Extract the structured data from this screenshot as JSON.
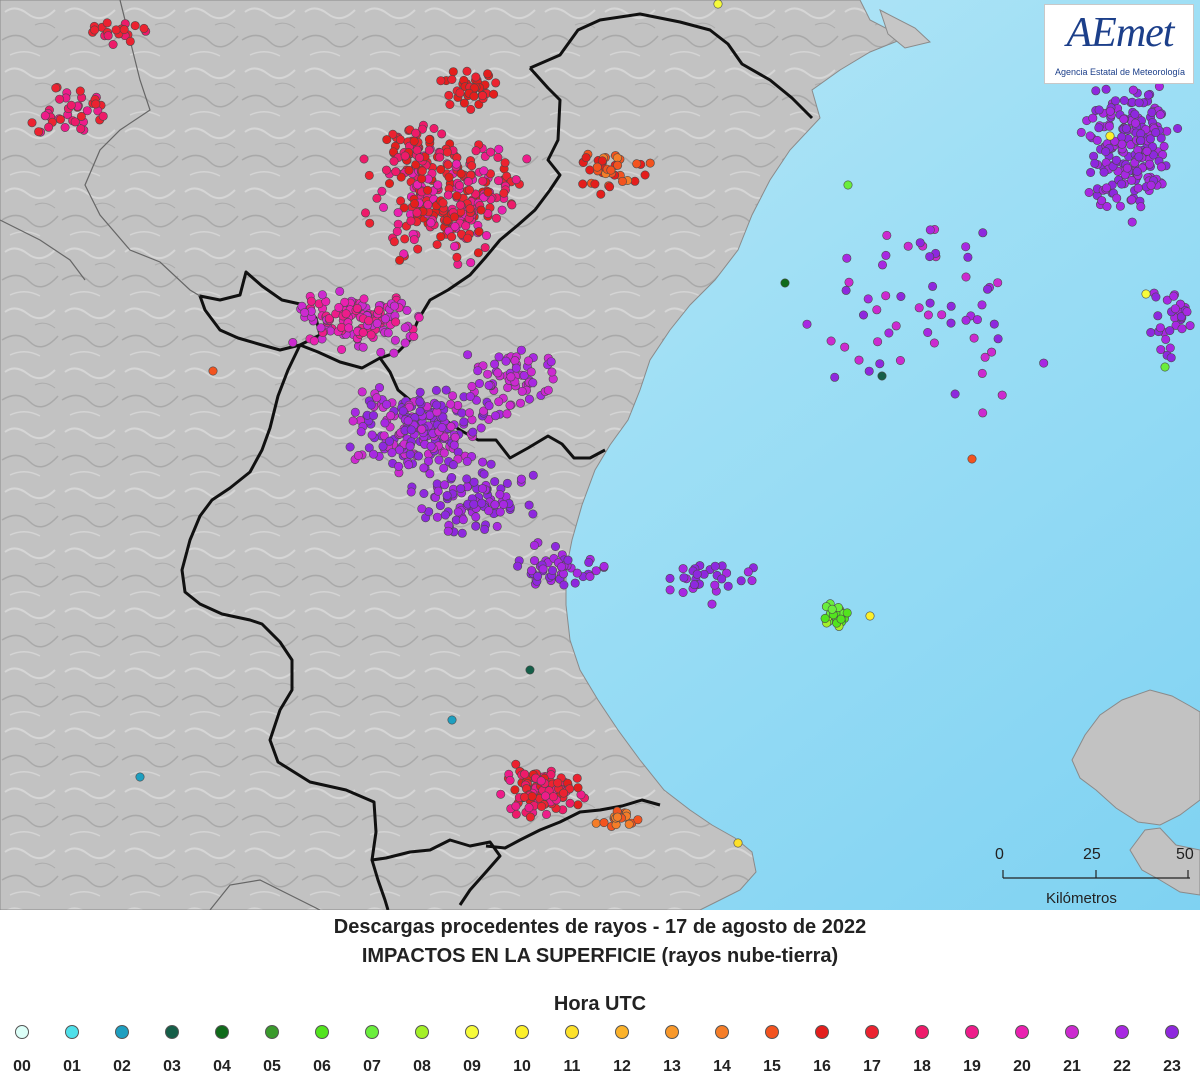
{
  "map": {
    "logo": {
      "text": "AEmet",
      "subtitle": "Agencia Estatal de Meteorología"
    },
    "scale_bar": {
      "labels": [
        "0",
        "25",
        "50"
      ],
      "unit": "Kilómetros"
    }
  },
  "titles": {
    "line1": "Descargas procedentes de rayos - 17 de agosto de 2022",
    "line2": "IMPACTOS EN LA SUPERFICIE (rayos nube-tierra)"
  },
  "legend": {
    "title": "Hora UTC",
    "items": [
      {
        "label": "00",
        "color": "#dcfff8"
      },
      {
        "label": "01",
        "color": "#4fe0ea"
      },
      {
        "label": "02",
        "color": "#1e9fc0"
      },
      {
        "label": "03",
        "color": "#155e48"
      },
      {
        "label": "04",
        "color": "#0f6a1a"
      },
      {
        "label": "05",
        "color": "#3a9a2c"
      },
      {
        "label": "06",
        "color": "#52e41e"
      },
      {
        "label": "07",
        "color": "#6aee3c"
      },
      {
        "label": "08",
        "color": "#a4f028"
      },
      {
        "label": "09",
        "color": "#f6fb3a"
      },
      {
        "label": "10",
        "color": "#fcf02a"
      },
      {
        "label": "11",
        "color": "#fde12a"
      },
      {
        "label": "12",
        "color": "#fbb22a"
      },
      {
        "label": "13",
        "color": "#f8982a"
      },
      {
        "label": "14",
        "color": "#f57d28"
      },
      {
        "label": "15",
        "color": "#f3531f"
      },
      {
        "label": "16",
        "color": "#e41e1c"
      },
      {
        "label": "17",
        "color": "#ec2230"
      },
      {
        "label": "18",
        "color": "#ee1a6a"
      },
      {
        "label": "19",
        "color": "#ee1c8a"
      },
      {
        "label": "20",
        "color": "#ea20b0"
      },
      {
        "label": "21",
        "color": "#cc2ad0"
      },
      {
        "label": "22",
        "color": "#a828e2"
      },
      {
        "label": "23",
        "color": "#8e28de"
      }
    ]
  }
}
